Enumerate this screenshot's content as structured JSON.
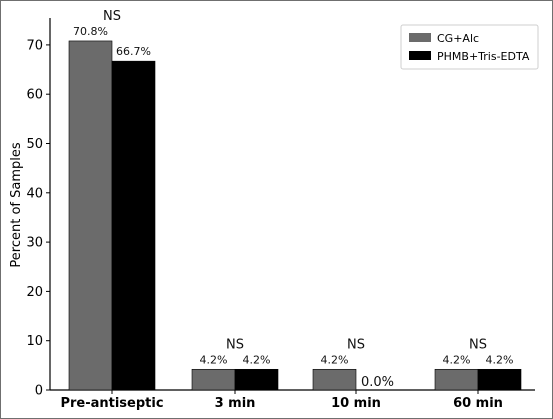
{
  "chart_data": {
    "type": "bar",
    "title": "",
    "xlabel": "",
    "ylabel": "Percent of Samples",
    "ylim": [
      0,
      75
    ],
    "yticks": [
      0,
      10,
      20,
      30,
      40,
      50,
      60,
      70
    ],
    "grid": false,
    "legend_position": "top-right",
    "categories": [
      "Pre-antiseptic",
      "3 min",
      "10 min",
      "60 min"
    ],
    "series": [
      {
        "name": "CG+Alc",
        "color": "#6b6b6b",
        "values": [
          70.8,
          4.2,
          4.2,
          4.2
        ],
        "labels": [
          "70.8%",
          "4.2%",
          "4.2%",
          "4.2%"
        ]
      },
      {
        "name": "PHMB+Tris-EDTA",
        "color": "#000000",
        "values": [
          66.7,
          4.2,
          0.0,
          4.2
        ],
        "labels": [
          "66.7%",
          "4.2%",
          "0.0%",
          "4.2%"
        ]
      }
    ],
    "significance": [
      "NS",
      "NS",
      "NS",
      "NS"
    ]
  }
}
